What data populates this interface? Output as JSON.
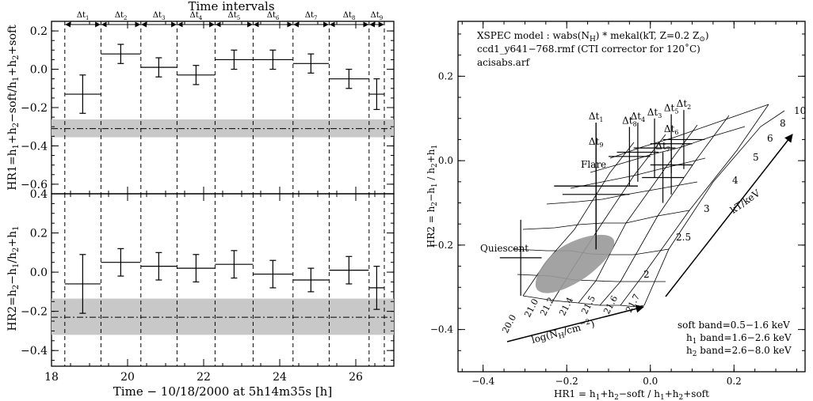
{
  "left_panel": {
    "title": "Time intervals",
    "interval_labels": [
      "Δt1",
      "Δt2",
      "Δt3",
      "Δt4",
      "Δt5",
      "Δt6",
      "Δt7",
      "Δt8",
      "Δt9"
    ],
    "x_axis_label": "Time − 10/18/2000 at 5h14m35s [h]",
    "top_ylabel": "HR1=h1+h2−soft/h1+h2+soft",
    "bottom_ylabel": "HR2=h2−h1/h2+h1"
  },
  "right_panel": {
    "xlabel": "HR1 = h1+h2−soft / h1+h2+soft",
    "ylabel": "HR2 = h2−h1 / h2+h1",
    "info_lines": [
      "XSPEC model : wabs(NH) * mekal(kT, Z=0.2 Z⊙)",
      "ccd1_y641−768.rmf (CTI corrector for 120˚C)",
      "acisabs.arf"
    ],
    "band_lines": [
      "soft band=0.5−1.6 keV",
      "h1 band=1.6−2.6 keV",
      "h2 band=2.6−8.0 keV"
    ],
    "kT_axis_label": "kT/keV",
    "nh_axis_label": "log(NH/cm⁻²)",
    "kT_grid_labels": [
      "2",
      "2.5",
      "3",
      "4",
      "5",
      "6",
      "8",
      "10"
    ],
    "nh_grid_labels": [
      "20.0",
      "21.0",
      "21.2",
      "21.4",
      "21.5",
      "21.6",
      "21.7"
    ],
    "annotation_flare": "Flare",
    "annotation_quiescent": "Quiescent",
    "point_labels": [
      "Δt1",
      "Δt2",
      "Δt3",
      "Δt4",
      "Δt5",
      "Δt6",
      "Δt7",
      "Δt8",
      "Δt9"
    ]
  },
  "chart_data": [
    {
      "type": "scatter",
      "title": "Time intervals",
      "xlabel": "Time − 10/18/2000 at 5h14m35s [h]",
      "ylabel": "HR1=h1+h2−soft/h1+h2+soft",
      "xlim": [
        18,
        27
      ],
      "ylim": [
        -0.65,
        0.25
      ],
      "xticks": [
        18,
        20,
        22,
        24,
        26
      ],
      "yticks": [
        -0.6,
        -0.4,
        -0.2,
        0.0,
        0.2
      ],
      "interval_boundaries": [
        18.35,
        19.3,
        20.35,
        21.3,
        22.3,
        23.3,
        24.35,
        25.3,
        26.35,
        26.75
      ],
      "series": [
        {
          "x": [
            18.82,
            19.82,
            20.82,
            21.8,
            22.8,
            23.82,
            24.82,
            25.82,
            26.55
          ],
          "xerr": [
            0.47,
            0.52,
            0.47,
            0.5,
            0.5,
            0.52,
            0.47,
            0.52,
            0.2
          ],
          "y": [
            -0.13,
            0.08,
            0.01,
            -0.03,
            0.05,
            0.05,
            0.03,
            -0.05,
            -0.13
          ],
          "yerr": [
            0.1,
            0.05,
            0.05,
            0.05,
            0.05,
            0.05,
            0.05,
            0.05,
            0.08
          ]
        }
      ],
      "quiescent_level": {
        "y": -0.31,
        "band": [
          -0.355,
          -0.262
        ]
      }
    },
    {
      "type": "scatter",
      "xlabel": "Time − 10/18/2000 at 5h14m35s [h]",
      "ylabel": "HR2=h2−h1/h2+h1",
      "xlim": [
        18,
        27
      ],
      "ylim": [
        -0.48,
        0.4
      ],
      "xticks": [
        18,
        20,
        22,
        24,
        26
      ],
      "yticks": [
        -0.4,
        -0.2,
        0.0,
        0.2,
        0.4
      ],
      "series": [
        {
          "x": [
            18.82,
            19.82,
            20.82,
            21.8,
            22.8,
            23.82,
            24.82,
            25.82,
            26.55
          ],
          "xerr": [
            0.47,
            0.52,
            0.47,
            0.5,
            0.5,
            0.52,
            0.47,
            0.52,
            0.2
          ],
          "y": [
            -0.06,
            0.05,
            0.03,
            0.02,
            0.04,
            -0.01,
            -0.04,
            0.01,
            -0.08
          ],
          "yerr": [
            0.15,
            0.07,
            0.07,
            0.07,
            0.07,
            0.07,
            0.06,
            0.07,
            0.11
          ]
        }
      ],
      "quiescent_level": {
        "y": -0.23,
        "band": [
          -0.32,
          -0.135
        ]
      }
    },
    {
      "type": "scatter",
      "xlabel": "HR1 = h1+h2−soft / h1+h2+soft",
      "ylabel": "HR2 = h2−h1 / h2+h1",
      "xlim": [
        -0.46,
        0.37
      ],
      "ylim": [
        -0.5,
        0.33
      ],
      "xticks": [
        -0.4,
        -0.2,
        0.0,
        0.2
      ],
      "yticks": [
        -0.4,
        -0.2,
        0.0,
        0.2
      ],
      "series": [
        {
          "labels": [
            "Flare",
            "Quiescent",
            "Δt1",
            "Δt2",
            "Δt3",
            "Δt4",
            "Δt5",
            "Δt6",
            "Δt7",
            "Δt8",
            "Δt9"
          ],
          "x": [
            -0.13,
            -0.31,
            -0.13,
            0.08,
            0.01,
            -0.03,
            0.05,
            0.05,
            0.03,
            -0.05,
            -0.13
          ],
          "xerr": [
            0.1,
            0.05,
            0.1,
            0.05,
            0.05,
            0.05,
            0.05,
            0.05,
            0.05,
            0.05,
            0.08
          ],
          "y": [
            -0.06,
            -0.23,
            -0.06,
            0.05,
            0.03,
            0.02,
            0.04,
            -0.01,
            -0.04,
            0.01,
            -0.08
          ],
          "yerr": [
            0.15,
            0.09,
            0.15,
            0.07,
            0.07,
            0.07,
            0.07,
            0.07,
            0.06,
            0.07,
            0.11
          ]
        }
      ]
    }
  ]
}
